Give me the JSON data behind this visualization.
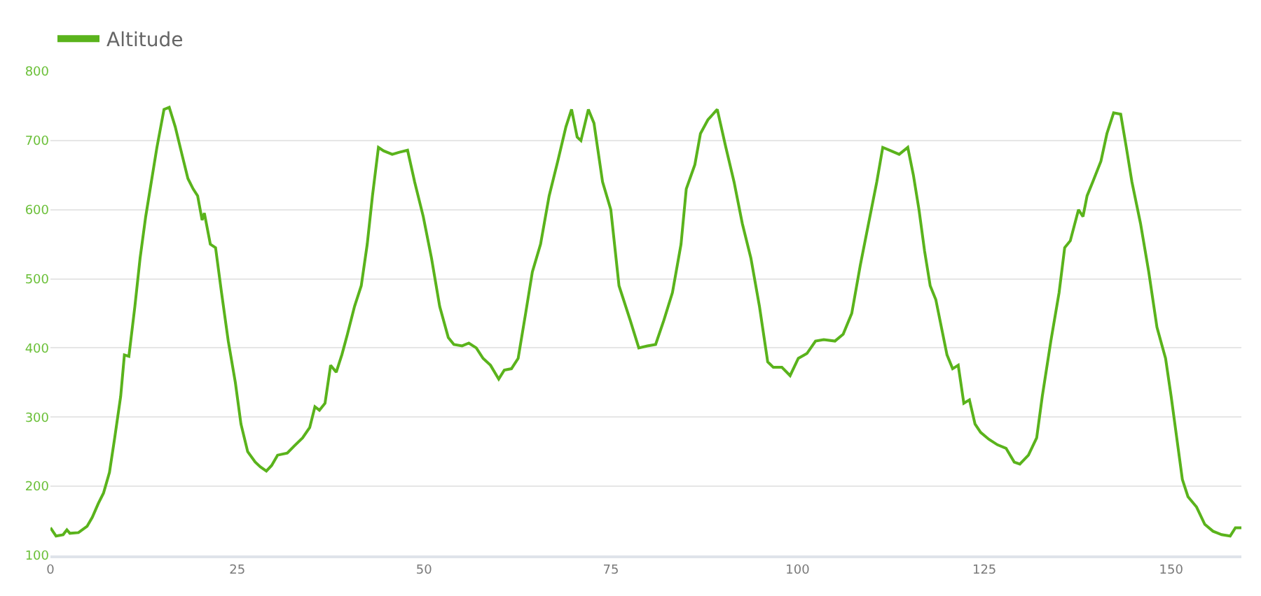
{
  "chart_data": {
    "type": "line",
    "legend": "top left",
    "grid": "y",
    "marker": "none",
    "line_style": "solid",
    "xlim": [
      0,
      159.4
    ],
    "xticks": [
      0,
      25,
      50,
      75,
      100,
      125,
      150
    ],
    "ylim": [
      100,
      800
    ],
    "yticks": [
      100,
      200,
      300,
      400,
      500,
      600,
      700,
      800
    ],
    "series": [
      {
        "name": "Altitude",
        "color": "#5ab31c",
        "x": [
          0,
          0.75,
          1.7,
          2.2,
          2.6,
          3.75,
          4.9,
          5.6,
          6.4,
          7.1,
          7.9,
          8.6,
          9.4,
          9.9,
          10.5,
          11.3,
          12,
          12.75,
          13.5,
          14.25,
          15.2,
          15.9,
          16.7,
          17.6,
          18.4,
          19.1,
          19.7,
          20.3,
          20.6,
          21.4,
          22.1,
          22.9,
          23.8,
          24.75,
          25.5,
          26.4,
          27.4,
          28.1,
          28.9,
          29.6,
          30.4,
          31.7,
          32.6,
          33.75,
          34.7,
          35.4,
          36,
          36.75,
          37.5,
          38.25,
          39,
          39.75,
          40.7,
          41.6,
          42.4,
          43.1,
          43.9,
          44.6,
          45.75,
          46.7,
          47.8,
          48.75,
          49.9,
          51,
          52.1,
          53.25,
          54,
          55.1,
          56,
          57,
          57.9,
          58.9,
          60,
          60.75,
          61.7,
          62.6,
          63.6,
          64.5,
          65.6,
          66.75,
          67.9,
          69,
          69.75,
          70.5,
          71,
          72,
          72.75,
          73.9,
          75,
          76.1,
          77.6,
          78.75,
          79.9,
          81,
          82.1,
          83.25,
          84.4,
          85.1,
          86.25,
          87,
          88,
          89.25,
          90.4,
          91.5,
          92.6,
          93.75,
          94.9,
          96,
          96.75,
          97.9,
          99,
          100.1,
          101.25,
          102.4,
          103.5,
          105,
          106.1,
          107.25,
          108.4,
          109.5,
          110.6,
          111.4,
          112.5,
          113.6,
          114.75,
          115.5,
          116.25,
          117,
          117.75,
          118.5,
          119.25,
          120,
          120.75,
          121.5,
          122.25,
          123,
          123.75,
          124.5,
          125.6,
          126.75,
          127.9,
          129,
          129.75,
          130.9,
          132,
          132.75,
          133.9,
          135,
          135.75,
          136.5,
          137.6,
          138.2,
          138.75,
          139.5,
          140.6,
          141.4,
          142.3,
          143.25,
          144,
          144.75,
          145.9,
          147,
          148.1,
          149.25,
          150,
          150.75,
          151.5,
          152.25,
          153.4,
          154.5,
          155.6,
          156.75,
          157.9,
          158.6,
          159.4
        ],
        "values": [
          140,
          128,
          130,
          137,
          132,
          133,
          142,
          155,
          175,
          190,
          220,
          270,
          330,
          390,
          388,
          460,
          530,
          590,
          640,
          690,
          745,
          748,
          720,
          680,
          645,
          630,
          620,
          585,
          595,
          550,
          545,
          480,
          410,
          350,
          290,
          250,
          235,
          228,
          222,
          230,
          245,
          248,
          258,
          270,
          285,
          315,
          310,
          320,
          375,
          365,
          390,
          420,
          460,
          490,
          550,
          620,
          690,
          685,
          680,
          683,
          686,
          640,
          590,
          530,
          460,
          415,
          405,
          403,
          407,
          400,
          385,
          375,
          355,
          368,
          370,
          385,
          450,
          510,
          550,
          620,
          670,
          720,
          745,
          705,
          700,
          745,
          725,
          640,
          600,
          490,
          440,
          400,
          403,
          405,
          440,
          480,
          550,
          630,
          665,
          710,
          730,
          745,
          690,
          640,
          580,
          530,
          460,
          380,
          372,
          372,
          360,
          385,
          392,
          410,
          412,
          410,
          420,
          450,
          520,
          580,
          640,
          690,
          685,
          680,
          690,
          650,
          600,
          540,
          490,
          470,
          430,
          390,
          370,
          375,
          320,
          325,
          290,
          278,
          268,
          260,
          255,
          235,
          232,
          245,
          270,
          330,
          410,
          480,
          545,
          555,
          600,
          590,
          620,
          640,
          670,
          710,
          740,
          738,
          690,
          640,
          580,
          510,
          430,
          385,
          330,
          270,
          210,
          185,
          170,
          145,
          135,
          130,
          128,
          140,
          140
        ]
      }
    ]
  }
}
